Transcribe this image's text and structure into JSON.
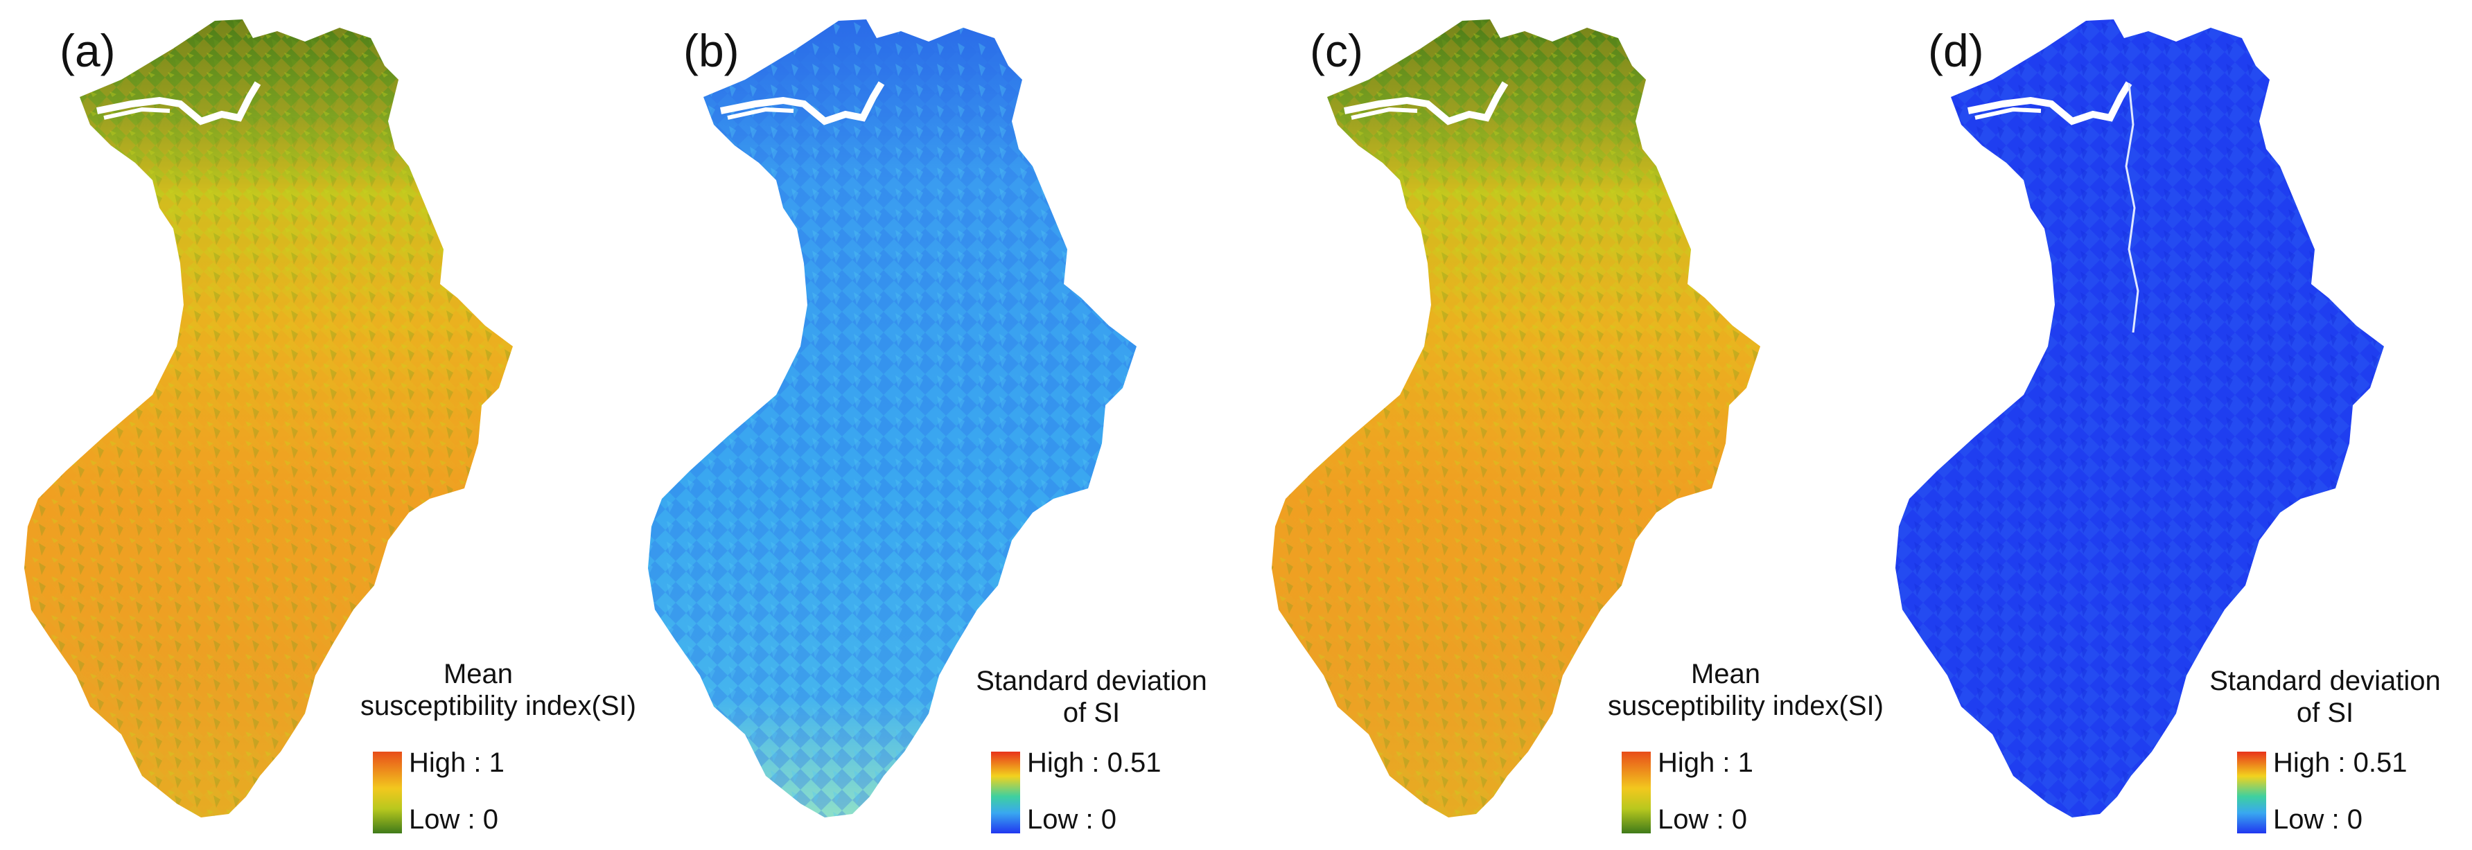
{
  "panels": [
    {
      "letter": "(a)",
      "palette": "mean",
      "legend": {
        "title_lines": [
          "Mean",
          "susceptibility index(SI)"
        ],
        "high": "High : 1",
        "low": "Low : 0"
      }
    },
    {
      "letter": "(b)",
      "palette": "sd",
      "legend": {
        "title_lines": [
          "Standard deviation",
          "of SI"
        ],
        "high": "High : 0.51",
        "low": "Low : 0"
      }
    },
    {
      "letter": "(c)",
      "palette": "mean",
      "legend": {
        "title_lines": [
          "Mean",
          "susceptibility index(SI)"
        ],
        "high": "High : 1",
        "low": "Low : 0"
      }
    },
    {
      "letter": "(d)",
      "palette": "sd_low",
      "legend": {
        "title_lines": [
          "Standard deviation",
          "of SI"
        ],
        "high": "High : 0.51",
        "low": "Low : 0"
      }
    }
  ],
  "colors": {
    "mean_north": "#5a8a1c",
    "mean_mid": "#d8d21a",
    "mean_high": "#f29a22",
    "sd_b_base": "#3aa8f0",
    "sd_b_dark": "#2a6ee8",
    "sd_d_base": "#1f3ef0",
    "river": "#ffffff"
  }
}
